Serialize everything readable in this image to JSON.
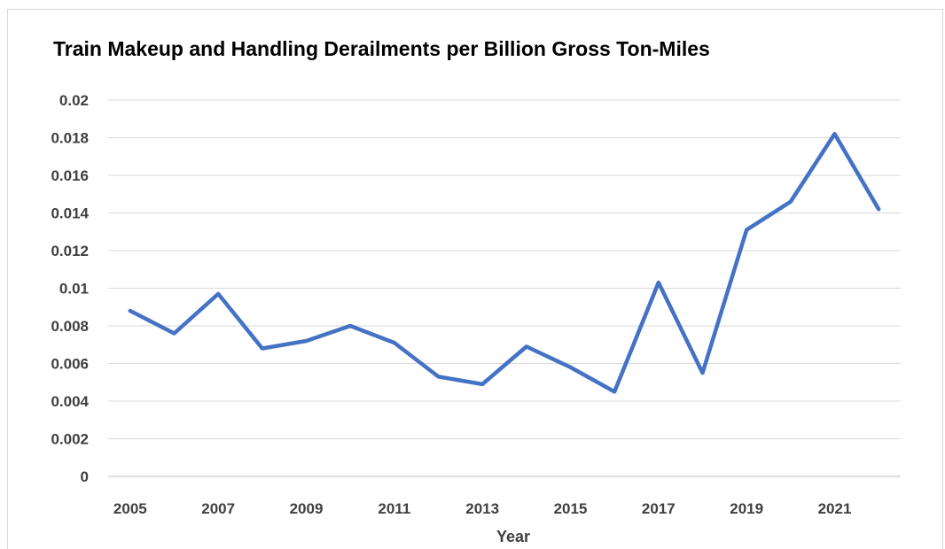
{
  "chart_data": {
    "type": "line",
    "title": "Train Makeup and Handling Derailments per Billion Gross Ton-Miles",
    "xlabel": "Year",
    "ylabel": "",
    "ylim": [
      0,
      0.02
    ],
    "y_ticks": [
      "0",
      "0.002",
      "0.004",
      "0.006",
      "0.008",
      "0.01",
      "0.012",
      "0.014",
      "0.016",
      "0.018",
      "0.02"
    ],
    "x_tick_labels": [
      "2005",
      "2007",
      "2009",
      "2011",
      "2013",
      "2015",
      "2017",
      "2019",
      "2021"
    ],
    "x": [
      2005,
      2006,
      2007,
      2008,
      2009,
      2010,
      2011,
      2012,
      2013,
      2014,
      2015,
      2016,
      2017,
      2018,
      2019,
      2020,
      2021,
      2022
    ],
    "grid": true,
    "legend": "none",
    "series": [
      {
        "color": "#4472C4",
        "values": [
          0.0088,
          0.0076,
          0.0097,
          0.0068,
          0.0072,
          0.008,
          0.0071,
          0.0053,
          0.0049,
          0.0069,
          0.0058,
          0.0045,
          0.0103,
          0.0055,
          0.0131,
          0.0146,
          0.0182,
          0.0142
        ]
      }
    ]
  }
}
